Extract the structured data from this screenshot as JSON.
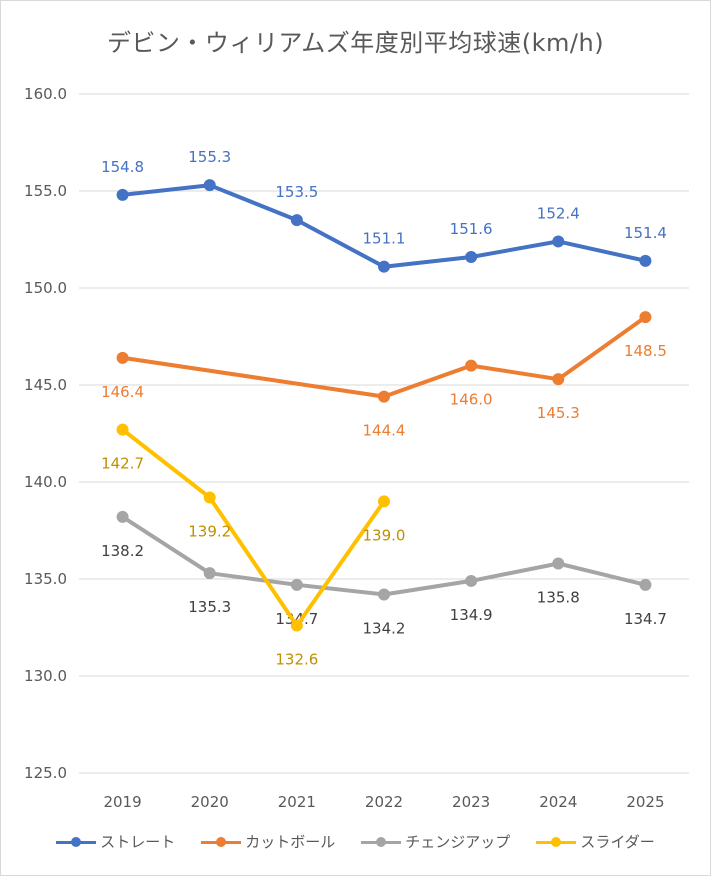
{
  "chart_data": {
    "type": "line",
    "title": "デビン・ウィリアムズ年度別平均球速(km/h)",
    "categories": [
      "2019",
      "2020",
      "2021",
      "2022",
      "2023",
      "2024",
      "2025"
    ],
    "ylim": [
      125.0,
      160.0
    ],
    "yticks": [
      "125.0",
      "130.0",
      "135.0",
      "140.0",
      "145.0",
      "150.0",
      "155.0",
      "160.0"
    ],
    "grid": true,
    "legend_position": "bottom",
    "series": [
      {
        "name": "ストレート",
        "color": "#4472C4",
        "label_color": "#4472C4",
        "label_pos": "above",
        "values": [
          154.8,
          155.3,
          153.5,
          151.1,
          151.6,
          152.4,
          151.4
        ],
        "labels": [
          "154.8",
          "155.3",
          "153.5",
          "151.1",
          "151.6",
          "152.4",
          "151.4"
        ]
      },
      {
        "name": "カットボール",
        "color": "#ED7D31",
        "label_color": "#ED7D31",
        "label_pos": "below",
        "values": [
          146.4,
          null,
          null,
          144.4,
          146.0,
          145.3,
          148.5
        ],
        "labels": [
          "146.4",
          "",
          "",
          "144.4",
          "146.0",
          "145.3",
          "148.5"
        ]
      },
      {
        "name": "チェンジアップ",
        "color": "#A5A5A5",
        "label_color": "#404040",
        "label_pos": "below",
        "values": [
          138.2,
          135.3,
          134.7,
          134.2,
          134.9,
          135.8,
          134.7
        ],
        "labels": [
          "138.2",
          "135.3",
          "134.7",
          "134.2",
          "134.9",
          "135.8",
          "134.7"
        ]
      },
      {
        "name": "スライダー",
        "color": "#FFC000",
        "label_color": "#BF9000",
        "label_pos": "below",
        "values": [
          142.7,
          139.2,
          132.6,
          139.0,
          null,
          null,
          null
        ],
        "labels": [
          "142.7",
          "139.2",
          "132.6",
          "139.0",
          "",
          "",
          ""
        ]
      }
    ]
  }
}
